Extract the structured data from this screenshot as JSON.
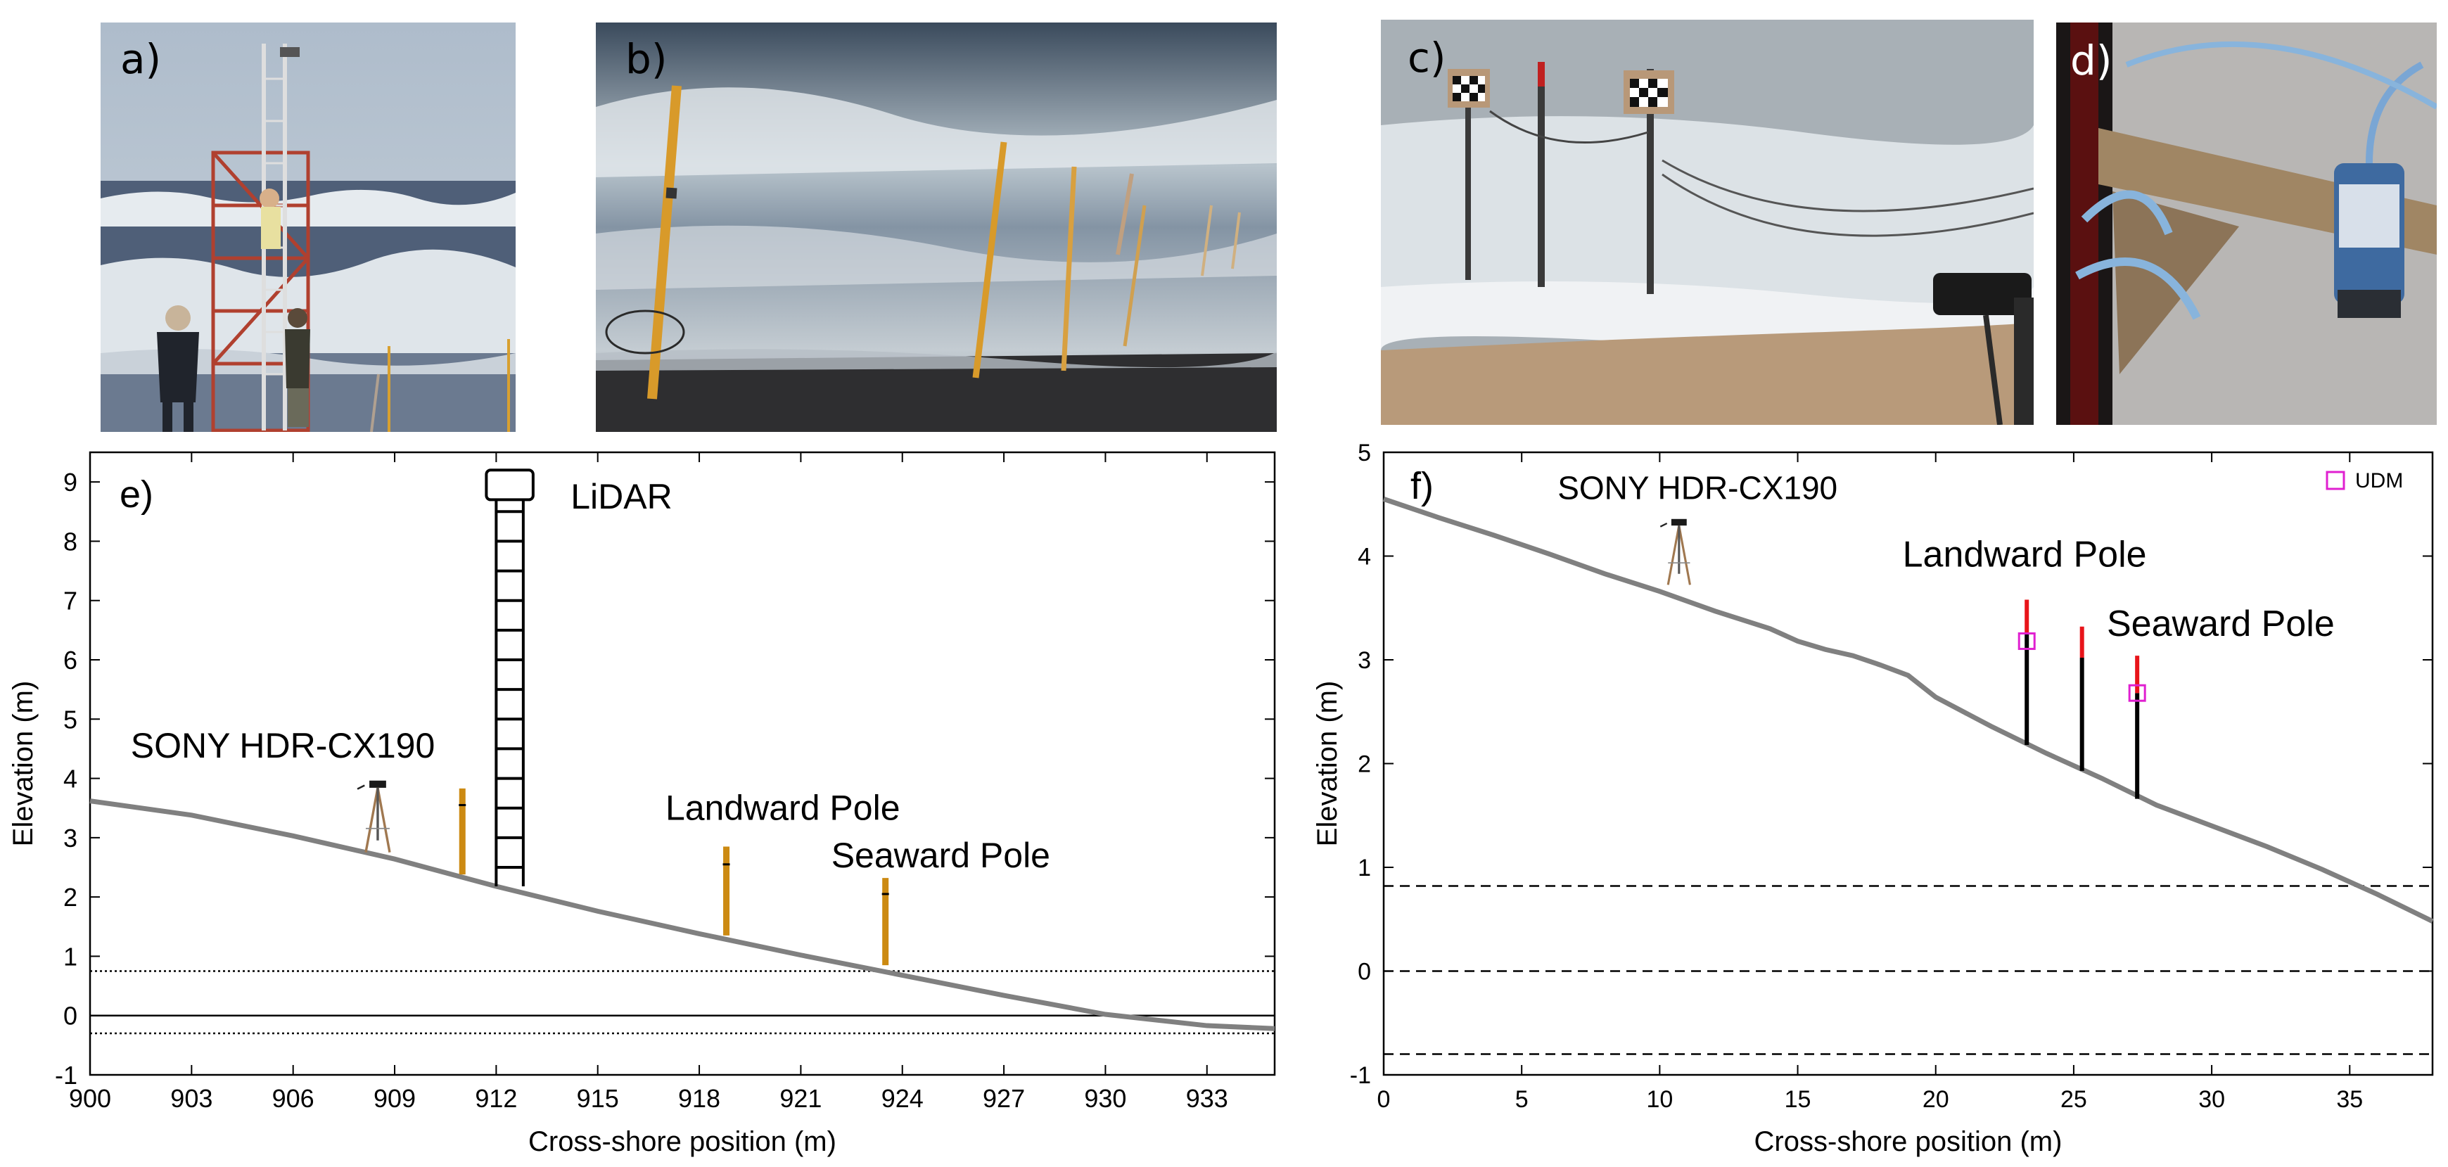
{
  "panels": {
    "a": {
      "label": "a)"
    },
    "b": {
      "label": "b)"
    },
    "c": {
      "label": "c)"
    },
    "d": {
      "label": "d)"
    }
  },
  "colors": {
    "profile": "#808080",
    "pole_orange": "#cc8a12",
    "pole_red": "#e8141a",
    "udm_magenta": "#e020d0",
    "axis": "#000000"
  },
  "chart_data": [
    {
      "id": "e",
      "type": "line",
      "panel_label": "e)",
      "xlabel": "Cross-shore position (m)",
      "ylabel": "Elevation (m)",
      "xlim": [
        900,
        935
      ],
      "ylim": [
        -1,
        9.5
      ],
      "xticks": [
        900,
        903,
        906,
        909,
        912,
        915,
        918,
        921,
        924,
        927,
        930,
        933
      ],
      "yticks": [
        -1,
        0,
        1,
        2,
        3,
        4,
        5,
        6,
        7,
        8,
        9
      ],
      "profile": {
        "x": [
          900,
          903,
          906,
          909,
          912,
          915,
          918,
          921,
          924,
          927,
          930,
          933,
          935
        ],
        "y": [
          3.62,
          3.38,
          3.03,
          2.64,
          2.18,
          1.76,
          1.38,
          1.02,
          0.68,
          0.34,
          0.02,
          -0.17,
          -0.22
        ]
      },
      "hlines": [
        {
          "y": 0.75,
          "style": "dotted"
        },
        {
          "y": 0.0,
          "style": "solid"
        },
        {
          "y": -0.3,
          "style": "dotted"
        }
      ],
      "poles": [
        {
          "x": 911.0,
          "y_bottom": 2.38,
          "y_top": 3.83,
          "mark": 3.55
        },
        {
          "x": 918.8,
          "y_bottom": 1.35,
          "y_top": 2.85,
          "mark": 2.55
        },
        {
          "x": 923.5,
          "y_bottom": 0.85,
          "y_top": 2.32,
          "mark": 2.05
        }
      ],
      "lidar_tower": {
        "x_left": 912.0,
        "x_right": 912.8,
        "y_bottom": 2.18,
        "y_top": 8.7,
        "head_top": 9.2
      },
      "tripod": {
        "x": 908.5,
        "y": 2.8
      },
      "annotations": [
        {
          "text": "LiDAR",
          "x": 914.2,
          "y": 8.55
        },
        {
          "text": "SONY HDR-CX190",
          "x": 901.2,
          "y": 4.35
        },
        {
          "text": "Landward Pole",
          "x": 917.0,
          "y": 3.3
        },
        {
          "text": "Seaward Pole",
          "x": 921.9,
          "y": 2.5
        }
      ]
    },
    {
      "id": "f",
      "type": "line",
      "panel_label": "f)",
      "xlabel": "Cross-shore position (m)",
      "ylabel": "Elevation (m)",
      "xlim": [
        0,
        38
      ],
      "ylim": [
        -1,
        5
      ],
      "xticks": [
        0,
        5,
        10,
        15,
        20,
        25,
        30,
        35
      ],
      "yticks": [
        -1,
        0,
        1,
        2,
        3,
        4,
        5
      ],
      "profile": {
        "x": [
          0,
          2,
          4,
          6,
          8,
          10,
          12,
          14,
          15,
          16,
          17,
          18,
          19,
          20,
          22,
          24,
          26,
          28,
          30,
          32,
          34,
          36,
          38
        ],
        "y": [
          4.55,
          4.37,
          4.2,
          4.02,
          3.83,
          3.66,
          3.47,
          3.3,
          3.18,
          3.1,
          3.04,
          2.95,
          2.85,
          2.64,
          2.36,
          2.1,
          1.86,
          1.6,
          1.4,
          1.2,
          0.98,
          0.74,
          0.48
        ]
      },
      "hlines": [
        {
          "y": 0.82,
          "style": "dashed"
        },
        {
          "y": 0.0,
          "style": "dashed"
        },
        {
          "y": -0.8,
          "style": "dashed"
        }
      ],
      "poles": [
        {
          "x": 23.3,
          "y_bottom": 2.18,
          "y_black_top": 3.26,
          "y_top": 3.58
        },
        {
          "x": 25.3,
          "y_bottom": 1.93,
          "y_black_top": 3.02,
          "y_top": 3.32
        },
        {
          "x": 27.3,
          "y_bottom": 1.66,
          "y_black_top": 2.68,
          "y_top": 3.04
        }
      ],
      "udm": [
        {
          "x": 23.3,
          "y": 3.18
        },
        {
          "x": 27.3,
          "y": 2.68
        }
      ],
      "tripod": {
        "x": 10.7,
        "y": 3.75
      },
      "legend": {
        "label": "UDM",
        "placement": "top-right"
      },
      "annotations": [
        {
          "text": "SONY HDR-CX190",
          "x": 6.3,
          "y": 4.55
        },
        {
          "text": "Landward Pole",
          "x": 18.8,
          "y": 3.9
        },
        {
          "text": "Seaward Pole",
          "x": 26.2,
          "y": 3.23
        }
      ]
    }
  ]
}
